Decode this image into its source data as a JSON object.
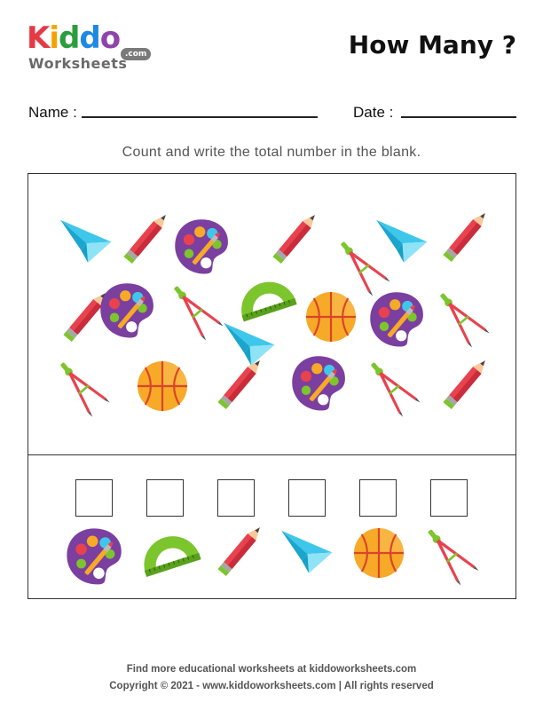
{
  "logo": {
    "letters": [
      {
        "ch": "K",
        "color": "#e63946"
      },
      {
        "ch": "i",
        "color": "#f4a300"
      },
      {
        "ch": "d",
        "color": "#2a9d3c"
      },
      {
        "ch": "d",
        "color": "#1e88e5"
      },
      {
        "ch": "o",
        "color": "#8e44ad"
      }
    ],
    "sub": "Worksheets",
    "com": ".com"
  },
  "header": {
    "title": "How Many ?"
  },
  "fields": {
    "name_label": "Name :",
    "date_label": "Date :"
  },
  "instruction": "Count and write the total number in the blank.",
  "answers": [
    {
      "item": "palette-icon",
      "value": ""
    },
    {
      "item": "protractor-icon",
      "value": ""
    },
    {
      "item": "pencil-icon",
      "value": ""
    },
    {
      "item": "paper-plane-icon",
      "value": ""
    },
    {
      "item": "basketball-icon",
      "value": ""
    },
    {
      "item": "compass-icon",
      "value": ""
    }
  ],
  "colors": {
    "pencil": "#e8424e",
    "palette": "#7b3fa0",
    "plane": "#3ec7ea",
    "protractor": "#7cc52d",
    "ball": "#f7a928",
    "compass": "#e8424e"
  },
  "footer": {
    "line1": "Find more educational worksheets at kiddoworksheets.com",
    "line2": "Copyright © 2021 - www.kiddoworksheets.com  |  All rights reserved"
  }
}
